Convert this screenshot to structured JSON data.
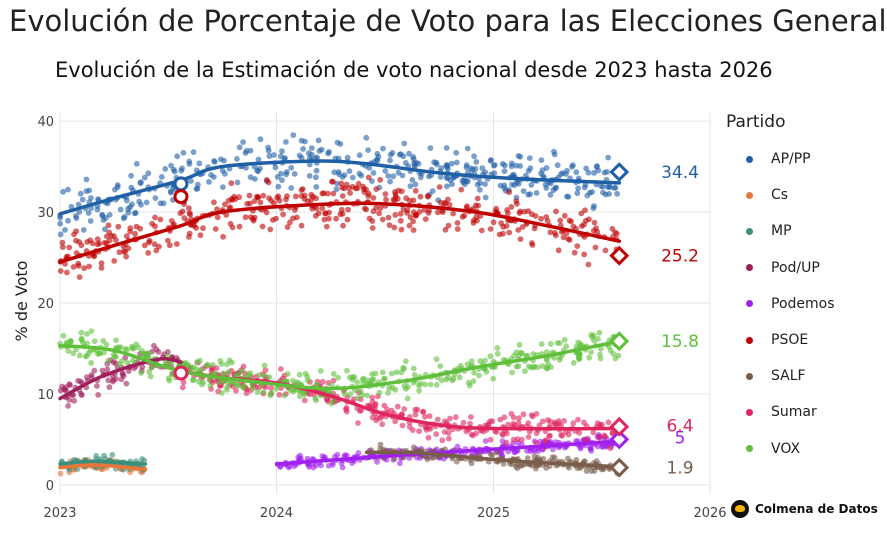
{
  "title": "Evolución de Porcentaje de Voto para las Elecciones Generales",
  "subtitle": "Evolución de la Estimación de voto nacional desde 2023 hasta 2026",
  "legend_title": "Partido",
  "brand": "Colmena de Datos",
  "brand_icon": "bee-logo-icon",
  "chart_data": {
    "type": "scatter",
    "ylabel": "% de Voto",
    "xlabel": "",
    "x_ticks": [
      "2023",
      "2024",
      "2025",
      "2026"
    ],
    "xlim": [
      "2023-01-01",
      "2026-01-01"
    ],
    "y_ticks": [
      0,
      10,
      20,
      30,
      40
    ],
    "ylim": [
      -1,
      41
    ],
    "grid": true,
    "legend_position": "right",
    "series": [
      {
        "name": "AP/PP",
        "color": "#1f5fa6",
        "trend": [
          [
            "2023-01-01",
            29.8
          ],
          [
            "2023-04-01",
            31.5
          ],
          [
            "2023-07-24",
            33.5
          ],
          [
            "2023-10-01",
            35.0
          ],
          [
            "2024-03-01",
            35.6
          ],
          [
            "2024-06-01",
            35.3
          ],
          [
            "2024-10-01",
            34.3
          ],
          [
            "2025-02-01",
            33.7
          ],
          [
            "2025-08-01",
            33.2
          ]
        ],
        "last_x": "2025-08-01",
        "last_value": 34.4,
        "end_label": "34.4"
      },
      {
        "name": "Cs",
        "color": "#e8763a",
        "trend": [
          [
            "2023-01-01",
            1.9
          ],
          [
            "2023-03-01",
            2.2
          ],
          [
            "2023-05-25",
            1.7
          ]
        ],
        "last_x": null,
        "last_value": null,
        "end_label": null
      },
      {
        "name": "MP",
        "color": "#3a8f7c",
        "trend": [
          [
            "2023-01-01",
            2.3
          ],
          [
            "2023-03-01",
            2.6
          ],
          [
            "2023-05-25",
            2.3
          ]
        ],
        "last_x": null,
        "last_value": null,
        "end_label": null
      },
      {
        "name": "Pod/UP",
        "color": "#9e1f5b",
        "trend": [
          [
            "2023-01-01",
            9.5
          ],
          [
            "2023-03-15",
            12.0
          ],
          [
            "2023-06-15",
            13.8
          ],
          [
            "2023-07-24",
            13.5
          ]
        ],
        "last_x": null,
        "last_value": null,
        "end_label": null
      },
      {
        "name": "Podemos",
        "color": "#a020f0",
        "trend": [
          [
            "2024-01-01",
            2.3
          ],
          [
            "2024-06-01",
            3.0
          ],
          [
            "2024-12-01",
            3.8
          ],
          [
            "2025-04-01",
            4.3
          ],
          [
            "2025-08-01",
            4.8
          ]
        ],
        "last_x": "2025-08-01",
        "last_value": 5,
        "end_label": "5"
      },
      {
        "name": "PSOE",
        "color": "#c00000",
        "trend": [
          [
            "2023-01-01",
            24.5
          ],
          [
            "2023-04-01",
            26.3
          ],
          [
            "2023-07-24",
            28.5
          ],
          [
            "2023-10-01",
            30.0
          ],
          [
            "2024-03-01",
            30.8
          ],
          [
            "2024-07-01",
            30.9
          ],
          [
            "2024-12-01",
            30.0
          ],
          [
            "2025-04-01",
            28.5
          ],
          [
            "2025-08-01",
            26.8
          ]
        ],
        "last_x": "2025-08-01",
        "last_value": 25.2,
        "end_label": "25.2"
      },
      {
        "name": "SALF",
        "color": "#7a5c4a",
        "trend": [
          [
            "2024-06-01",
            3.6
          ],
          [
            "2024-09-01",
            3.5
          ],
          [
            "2025-01-01",
            2.8
          ],
          [
            "2025-05-01",
            2.3
          ],
          [
            "2025-08-01",
            2.0
          ]
        ],
        "last_x": "2025-08-01",
        "last_value": 1.9,
        "end_label": "1.9"
      },
      {
        "name": "Sumar",
        "color": "#e0245e",
        "trend": [
          [
            "2023-07-24",
            12.5
          ],
          [
            "2023-10-01",
            11.8
          ],
          [
            "2024-01-01",
            11.2
          ],
          [
            "2024-04-01",
            9.8
          ],
          [
            "2024-07-01",
            7.8
          ],
          [
            "2024-10-01",
            6.6
          ],
          [
            "2025-01-01",
            6.2
          ],
          [
            "2025-08-01",
            6.2
          ]
        ],
        "last_x": "2025-08-01",
        "last_value": 6.4,
        "end_label": "6.4"
      },
      {
        "name": "VOX",
        "color": "#5fbf3a",
        "trend": [
          [
            "2023-01-01",
            15.3
          ],
          [
            "2023-04-01",
            14.8
          ],
          [
            "2023-07-24",
            12.5
          ],
          [
            "2023-12-01",
            11.3
          ],
          [
            "2024-04-01",
            10.6
          ],
          [
            "2024-08-01",
            11.4
          ],
          [
            "2024-12-01",
            12.9
          ],
          [
            "2025-04-01",
            14.2
          ],
          [
            "2025-08-01",
            15.8
          ]
        ],
        "last_x": "2025-08-01",
        "last_value": 15.8,
        "end_label": "15.8"
      }
    ],
    "election_markers": [
      {
        "x": "2023-07-24",
        "value": 33.1,
        "color": "#1f5fa6"
      },
      {
        "x": "2023-07-24",
        "value": 31.7,
        "color": "#c00000"
      },
      {
        "x": "2023-07-24",
        "value": 12.4,
        "color": "#5fbf3a"
      },
      {
        "x": "2023-07-24",
        "value": 12.3,
        "color": "#e0245e"
      }
    ]
  }
}
